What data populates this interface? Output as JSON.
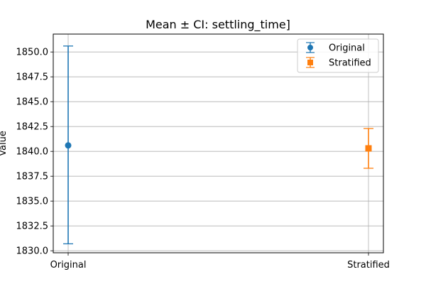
{
  "chart_data": {
    "type": "errorbar",
    "title": "Mean ± CI: settling_time]",
    "xlabel": "",
    "ylabel": "Value",
    "ylim": [
      1829.8,
      1851.8
    ],
    "yticks": [
      1830.0,
      1832.5,
      1835.0,
      1837.5,
      1840.0,
      1842.5,
      1845.0,
      1847.5,
      1850.0
    ],
    "ytick_labels": [
      "1830.0",
      "1832.5",
      "1835.0",
      "1837.5",
      "1840.0",
      "1842.5",
      "1845.0",
      "1847.5",
      "1850.0"
    ],
    "categories": [
      "Original",
      "Stratified"
    ],
    "grid": true,
    "legend_position": "top-right",
    "series": [
      {
        "name": "Original",
        "mean": 1840.6,
        "ci_low": 1830.7,
        "ci_high": 1850.6,
        "marker": "circle",
        "color": "#1f77b4"
      },
      {
        "name": "Stratified",
        "mean": 1840.3,
        "ci_low": 1838.3,
        "ci_high": 1842.3,
        "marker": "square",
        "color": "#ff7f0e"
      }
    ]
  }
}
